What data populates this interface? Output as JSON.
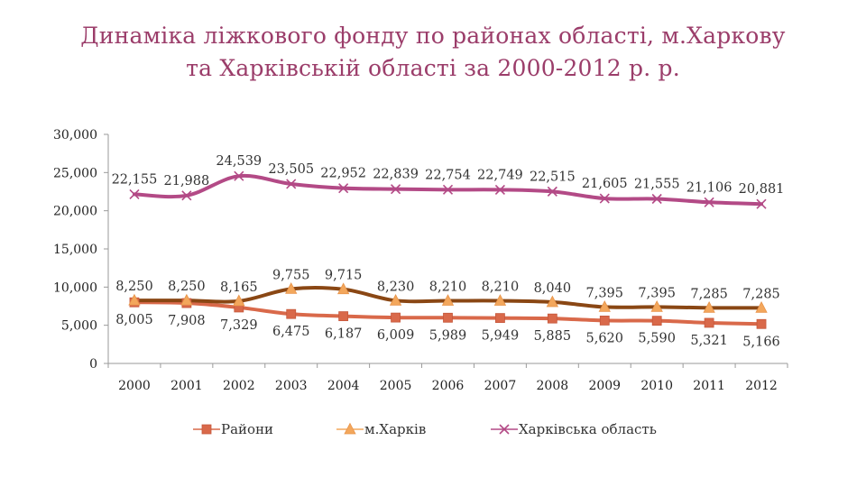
{
  "title": {
    "line1": "Динаміка ліжкового фонду по районах області, м.Харкову",
    "line2": "та Харківській області за 2000-2012 р. р."
  },
  "chart_data": {
    "type": "line",
    "categories": [
      "2000",
      "2001",
      "2002",
      "2003",
      "2004",
      "2005",
      "2006",
      "2007",
      "2008",
      "2009",
      "2010",
      "2011",
      "2012"
    ],
    "ylim": [
      0,
      30000
    ],
    "yticks": [
      0,
      5000,
      10000,
      15000,
      20000,
      25000,
      30000
    ],
    "ytick_labels": [
      "0",
      "5,000",
      "10,000",
      "15,000",
      "20,000",
      "25,000",
      "30,000"
    ],
    "grid": false,
    "legend_position": "bottom",
    "series": [
      {
        "name": "Райони",
        "color": "#d9694a",
        "marker": "square",
        "values": [
          8005,
          7908,
          7329,
          6475,
          6187,
          6009,
          5989,
          5949,
          5885,
          5620,
          5590,
          5321,
          5166
        ],
        "labels": [
          "8,005",
          "7,908",
          "7,329",
          "6,475",
          "6,187",
          "6,009",
          "5,989",
          "5,949",
          "5,885",
          "5,620",
          "5,590",
          "5,321",
          "5,166"
        ]
      },
      {
        "name": "м.Харків",
        "color": "#f3a75c",
        "line_color": "#8a4714",
        "marker": "triangle",
        "values": [
          8250,
          8250,
          8165,
          9755,
          9715,
          8230,
          8210,
          8210,
          8040,
          7395,
          7395,
          7285,
          7285
        ],
        "labels": [
          "8,250",
          "8,250",
          "8,165",
          "9,755",
          "9,715",
          "8,230",
          "8,210",
          "8,210",
          "8,040",
          "7,395",
          "7,395",
          "7,285",
          "7,285"
        ]
      },
      {
        "name": "Харківська область",
        "color": "#b34a86",
        "marker": "x",
        "values": [
          22155,
          21988,
          24539,
          23505,
          22952,
          22839,
          22754,
          22749,
          22515,
          21605,
          21555,
          21106,
          20881
        ],
        "labels": [
          "22,155",
          "21,988",
          "24,539",
          "23,505",
          "22,952",
          "22,839",
          "22,754",
          "22,749",
          "22,515",
          "21,605",
          "21,555",
          "21,106",
          "20,881"
        ]
      }
    ]
  }
}
